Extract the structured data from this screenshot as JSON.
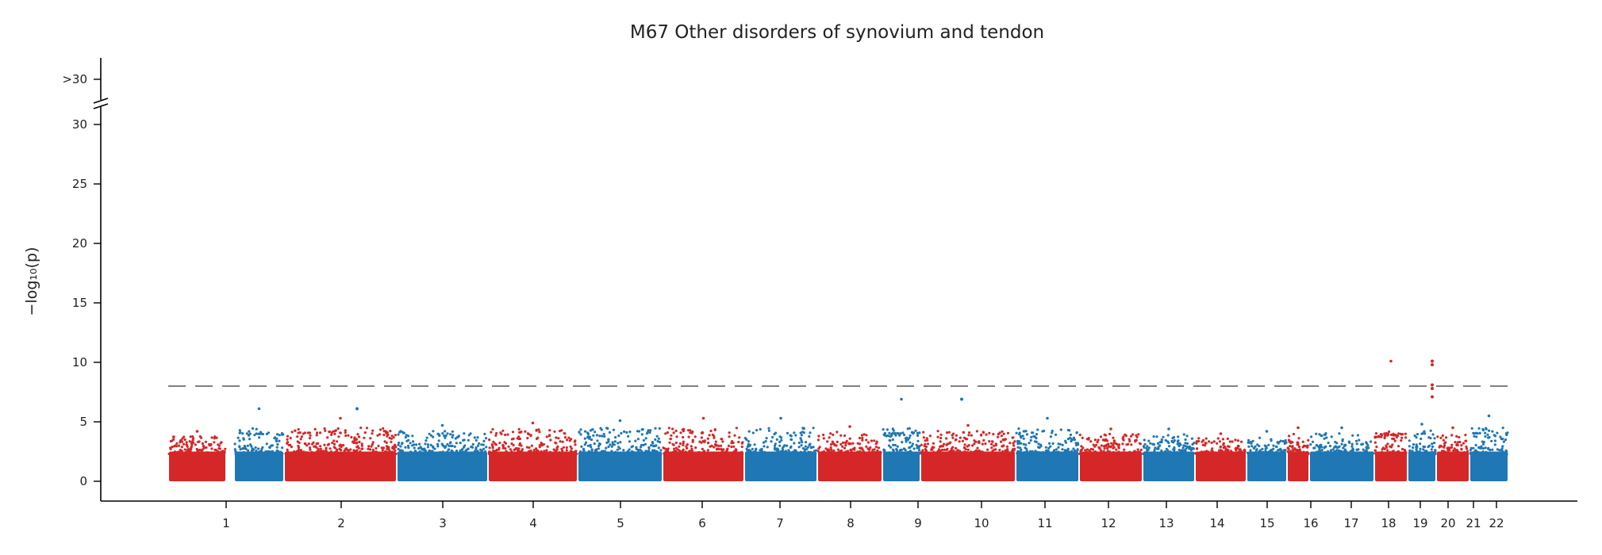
{
  "chart_data": {
    "type": "scatter",
    "subtype": "manhattan",
    "title": "M67 Other disorders of synovium and tendon",
    "ylabel": "−log₁₀(p)",
    "xlabel": "",
    "y_ticks": [
      0,
      5,
      10,
      15,
      20,
      25,
      30
    ],
    "y_ticks_labels": [
      "0",
      "5",
      "10",
      "15",
      "20",
      "25",
      "30"
    ],
    "y_break_label": ">30",
    "ylim": [
      0,
      30
    ],
    "genome_wide_threshold": 8,
    "chromosomes": [
      {
        "label": "1",
        "color": "#d62728",
        "max": 4.2
      },
      {
        "label": "2",
        "color": "#1f77b4",
        "max": 6.1
      },
      {
        "label": "3",
        "color": "#d62728",
        "max": 5.3
      },
      {
        "label": "4",
        "color": "#1f77b4",
        "max": 4.7
      },
      {
        "label": "5",
        "color": "#d62728",
        "max": 4.9
      },
      {
        "label": "6",
        "color": "#1f77b4",
        "max": 5.1
      },
      {
        "label": "7",
        "color": "#d62728",
        "max": 5.3
      },
      {
        "label": "8",
        "color": "#1f77b4",
        "max": 5.3
      },
      {
        "label": "9",
        "color": "#d62728",
        "max": 4.6
      },
      {
        "label": "10",
        "color": "#1f77b4",
        "max": 6.9
      },
      {
        "label": "11",
        "color": "#d62728",
        "max": 4.7
      },
      {
        "label": "12",
        "color": "#1f77b4",
        "max": 5.3
      },
      {
        "label": "13",
        "color": "#d62728",
        "max": 4.4
      },
      {
        "label": "14",
        "color": "#1f77b4",
        "max": 4.4
      },
      {
        "label": "15",
        "color": "#d62728",
        "max": 4.0
      },
      {
        "label": "16",
        "color": "#1f77b4",
        "max": 4.2
      },
      {
        "label": "17",
        "color": "#d62728",
        "max": 4.5
      },
      {
        "label": "18",
        "color": "#1f77b4",
        "max": 4.5
      },
      {
        "label": "19",
        "color": "#d62728",
        "max": 10.1
      },
      {
        "label": "20",
        "color": "#1f77b4",
        "max": 4.8
      },
      {
        "label": "21",
        "color": "#d62728",
        "max": 4.5
      },
      {
        "label": "22",
        "color": "#1f77b4",
        "max": 5.5
      }
    ],
    "top_hits": [
      {
        "chromosome": "19",
        "values": [
          10.1,
          9.8,
          8.1,
          7.8,
          7.1
        ]
      },
      {
        "chromosome": "10",
        "values": [
          6.9
        ]
      },
      {
        "chromosome": "2",
        "values": [
          6.1
        ]
      }
    ],
    "grid": false
  }
}
